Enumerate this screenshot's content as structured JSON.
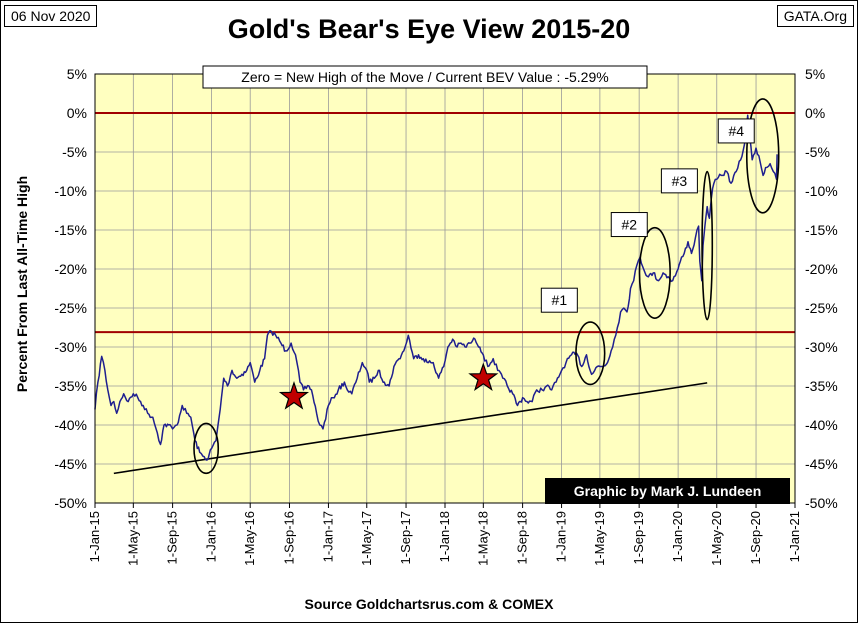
{
  "header": {
    "date": "06 Nov 2020",
    "site": "GATA.Org",
    "source": "Source Goldchartsrus.com & COMEX"
  },
  "colors": {
    "plot_bg": "#ffffc0",
    "series": "#1f1f8f",
    "ref_line": "#a00000",
    "trend_line": "#000000",
    "star": "#c00000",
    "credit_bg": "#000000",
    "credit_fg": "#ffffff"
  },
  "chart_data": {
    "type": "line",
    "title": "Gold's Bear's Eye View 2015-20",
    "ylabel": "Percent  From Last  All-Time High",
    "xlabel": "",
    "ylim": [
      -50,
      5
    ],
    "yticks": [
      5,
      0,
      -5,
      -10,
      -15,
      -20,
      -25,
      -30,
      -35,
      -40,
      -45,
      -50
    ],
    "ytick_labels": [
      "5%",
      "0%",
      "-5%",
      "-10%",
      "-15%",
      "-20%",
      "-25%",
      "-30%",
      "-35%",
      "-40%",
      "-45%",
      "-50%"
    ],
    "xlim": [
      "2015-01-01",
      "2021-01-01"
    ],
    "xticks": [
      "2015-01-01",
      "2015-05-01",
      "2015-09-01",
      "2016-01-01",
      "2016-05-01",
      "2016-09-01",
      "2017-01-01",
      "2017-05-01",
      "2017-09-01",
      "2018-01-01",
      "2018-05-01",
      "2018-09-01",
      "2019-01-01",
      "2019-05-01",
      "2019-09-01",
      "2020-01-01",
      "2020-05-01",
      "2020-09-01",
      "2021-01-01"
    ],
    "xtick_labels": [
      "1-Jan-15",
      "1-May-15",
      "1-Sep-15",
      "1-Jan-16",
      "1-May-16",
      "1-Sep-16",
      "1-Jan-17",
      "1-May-17",
      "1-Sep-17",
      "1-Jan-18",
      "1-May-18",
      "1-Sep-18",
      "1-Jan-19",
      "1-May-19",
      "1-Sep-19",
      "1-Jan-20",
      "1-May-20",
      "1-Sep-20",
      "1-Jan-21"
    ],
    "grid": true,
    "annotation_box": "Zero = New High of the Move / Current  BEV Value : -5.29%",
    "credit": "Graphic by Mark J. Lundeen",
    "reference_lines": [
      0,
      -28.1
    ],
    "trend_line": {
      "x": [
        "2015-03-01",
        "2020-04-01"
      ],
      "y": [
        -46.2,
        -34.6
      ]
    },
    "stars": [
      {
        "x": "2016-09-15",
        "y": -36.4
      },
      {
        "x": "2018-05-01",
        "y": -34.0
      }
    ],
    "ellipses": [
      {
        "cx": "2015-12-15",
        "cy": -43.0,
        "rx_days": 38,
        "ry": 3.2
      },
      {
        "cx": "2019-04-01",
        "cy": -30.8,
        "rx_days": 45,
        "ry": 4.0
      },
      {
        "cx": "2019-10-20",
        "cy": -20.5,
        "rx_days": 48,
        "ry": 5.8
      },
      {
        "cx": "2020-04-01",
        "cy": -17.0,
        "rx_days": 16,
        "ry": 9.5
      },
      {
        "cx": "2020-09-22",
        "cy": -5.5,
        "rx_days": 50,
        "ry": 7.3
      }
    ],
    "labels": [
      {
        "text": "#1",
        "x": "2018-12-25",
        "y": -24.0
      },
      {
        "text": "#2",
        "x": "2019-08-01",
        "y": -14.3
      },
      {
        "text": "#3",
        "x": "2020-01-05",
        "y": -8.7
      },
      {
        "text": "#4",
        "x": "2020-07-01",
        "y": -2.3
      }
    ],
    "series": [
      {
        "x": [
          "2015-01-01",
          "2015-01-10",
          "2015-01-22",
          "2015-02-01",
          "2015-02-10",
          "2015-02-20",
          "2015-03-01",
          "2015-03-10",
          "2015-03-20",
          "2015-04-01",
          "2015-04-15",
          "2015-05-01",
          "2015-05-15",
          "2015-06-01",
          "2015-06-15",
          "2015-07-01",
          "2015-07-15",
          "2015-07-25",
          "2015-08-05",
          "2015-08-20",
          "2015-09-01",
          "2015-09-15",
          "2015-10-01",
          "2015-10-15",
          "2015-10-28",
          "2015-11-10",
          "2015-11-25",
          "2015-12-05",
          "2015-12-17",
          "2016-01-01",
          "2016-01-15",
          "2016-01-28",
          "2016-02-08",
          "2016-02-20",
          "2016-03-05",
          "2016-03-20",
          "2016-04-05",
          "2016-04-20",
          "2016-05-01",
          "2016-05-15",
          "2016-05-31",
          "2016-06-15",
          "2016-06-24",
          "2016-07-06",
          "2016-07-20",
          "2016-08-05",
          "2016-08-20",
          "2016-09-06",
          "2016-09-20",
          "2016-10-04",
          "2016-10-15",
          "2016-11-01",
          "2016-11-09",
          "2016-11-25",
          "2016-12-05",
          "2016-12-15",
          "2017-01-01",
          "2017-01-15",
          "2017-02-01",
          "2017-02-20",
          "2017-03-01",
          "2017-03-15",
          "2017-04-01",
          "2017-04-17",
          "2017-05-01",
          "2017-05-09",
          "2017-05-25",
          "2017-06-06",
          "2017-06-25",
          "2017-07-10",
          "2017-07-25",
          "2017-08-10",
          "2017-08-25",
          "2017-09-08",
          "2017-09-25",
          "2017-10-10",
          "2017-10-25",
          "2017-11-10",
          "2017-11-25",
          "2017-12-12",
          "2017-12-28",
          "2018-01-10",
          "2018-01-25",
          "2018-02-08",
          "2018-02-20",
          "2018-03-05",
          "2018-03-20",
          "2018-04-05",
          "2018-04-20",
          "2018-05-01",
          "2018-05-15",
          "2018-06-01",
          "2018-06-15",
          "2018-07-01",
          "2018-07-15",
          "2018-08-01",
          "2018-08-16",
          "2018-09-01",
          "2018-09-15",
          "2018-10-01",
          "2018-10-15",
          "2018-11-01",
          "2018-11-15",
          "2018-12-01",
          "2018-12-15",
          "2019-01-01",
          "2019-01-15",
          "2019-02-01",
          "2019-02-20",
          "2019-03-05",
          "2019-03-20",
          "2019-04-05",
          "2019-04-23",
          "2019-05-10",
          "2019-05-25",
          "2019-06-05",
          "2019-06-15",
          "2019-06-25",
          "2019-07-05",
          "2019-07-15",
          "2019-07-25",
          "2019-08-05",
          "2019-08-15",
          "2019-08-25",
          "2019-09-04",
          "2019-09-15",
          "2019-09-30",
          "2019-10-15",
          "2019-11-01",
          "2019-11-15",
          "2019-12-01",
          "2019-12-15",
          "2020-01-01",
          "2020-01-08",
          "2020-01-20",
          "2020-02-01",
          "2020-02-12",
          "2020-02-24",
          "2020-03-05",
          "2020-03-09",
          "2020-03-15",
          "2020-03-19",
          "2020-03-25",
          "2020-04-01",
          "2020-04-08",
          "2020-04-14",
          "2020-04-22",
          "2020-05-01",
          "2020-05-15",
          "2020-06-01",
          "2020-06-15",
          "2020-07-01",
          "2020-07-15",
          "2020-07-27",
          "2020-08-06",
          "2020-08-12",
          "2020-08-20",
          "2020-09-01",
          "2020-09-10",
          "2020-09-23",
          "2020-10-01",
          "2020-10-15",
          "2020-10-25",
          "2020-11-04",
          "2020-11-06"
        ],
        "values": [
          -38.0,
          -34.5,
          -31.2,
          -33.0,
          -35.5,
          -37.5,
          -37.0,
          -38.5,
          -37.0,
          -36.0,
          -37.0,
          -36.0,
          -36.5,
          -37.5,
          -38.5,
          -39.0,
          -41.0,
          -42.5,
          -40.0,
          -40.0,
          -40.5,
          -40.0,
          -37.5,
          -38.5,
          -39.0,
          -42.0,
          -43.5,
          -44.0,
          -44.5,
          -43.0,
          -42.0,
          -38.0,
          -34.0,
          -35.0,
          -33.0,
          -34.0,
          -33.5,
          -33.0,
          -32.0,
          -34.5,
          -33.0,
          -31.5,
          -28.5,
          -28.0,
          -28.5,
          -29.5,
          -30.5,
          -29.5,
          -31.0,
          -34.5,
          -35.5,
          -35.0,
          -35.5,
          -38.5,
          -40.0,
          -40.5,
          -37.5,
          -36.5,
          -35.5,
          -34.5,
          -35.5,
          -36.0,
          -34.0,
          -32.0,
          -33.0,
          -34.5,
          -34.0,
          -33.0,
          -34.5,
          -35.0,
          -32.5,
          -31.5,
          -30.5,
          -28.5,
          -31.5,
          -31.0,
          -31.5,
          -32.0,
          -32.0,
          -34.0,
          -32.5,
          -30.0,
          -29.0,
          -30.0,
          -29.5,
          -30.0,
          -29.5,
          -29.0,
          -30.0,
          -31.0,
          -32.5,
          -31.5,
          -33.0,
          -34.0,
          -35.0,
          -36.0,
          -37.5,
          -36.5,
          -37.0,
          -37.0,
          -35.5,
          -35.5,
          -35.0,
          -35.5,
          -34.5,
          -33.0,
          -32.0,
          -31.0,
          -31.0,
          -32.5,
          -31.0,
          -33.5,
          -32.5,
          -32.5,
          -32.0,
          -30.5,
          -29.0,
          -27.5,
          -25.5,
          -25.0,
          -25.5,
          -22.5,
          -21.5,
          -19.5,
          -18.5,
          -20.0,
          -21.0,
          -20.5,
          -21.5,
          -20.5,
          -21.0,
          -21.5,
          -20.0,
          -19.0,
          -18.0,
          -16.5,
          -18.0,
          -16.0,
          -14.5,
          -19.0,
          -21.5,
          -17.0,
          -14.5,
          -12.0,
          -13.5,
          -11.0,
          -9.0,
          -8.5,
          -8.0,
          -7.5,
          -9.0,
          -7.5,
          -6.0,
          -4.0,
          -0.3,
          -3.0,
          -6.0,
          -4.5,
          -5.5,
          -8.0,
          -7.0,
          -6.5,
          -7.5,
          -8.5,
          -5.3
        ]
      }
    ]
  }
}
